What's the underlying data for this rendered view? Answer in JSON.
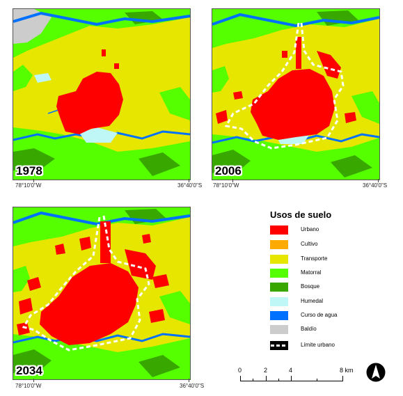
{
  "maps": [
    {
      "year": "1978",
      "coord_left": "78°10'0\"W",
      "coord_right": "36°40'0\"S"
    },
    {
      "year": "2006",
      "coord_left": "78°10'0\"W",
      "coord_right": "36°40'0\"S"
    },
    {
      "year": "2034",
      "coord_left": "78°10'0\"W",
      "coord_right": "36°40'0\"S"
    }
  ],
  "legend": {
    "title": "Usos de suelo",
    "items": [
      {
        "label": "Urbano",
        "color": "#ff0000"
      },
      {
        "label": "Cultivo",
        "color": "#ffaa00"
      },
      {
        "label": "Transporte",
        "color": "#e6e600"
      },
      {
        "label": "Matorral",
        "color": "#55ff00"
      },
      {
        "label": "Bosque",
        "color": "#38a800"
      },
      {
        "label": "Humedal",
        "color": "#bef7f5"
      },
      {
        "label": "Curso de agua",
        "color": "#0070ff"
      },
      {
        "label": "Baldío",
        "color": "#cccccc"
      },
      {
        "label": "Límite urbano",
        "color": "#000000"
      }
    ]
  },
  "scale_bar": {
    "labels": [
      "0",
      "2",
      "4",
      "8 km"
    ]
  },
  "north_arrow": "north-arrow-icon"
}
